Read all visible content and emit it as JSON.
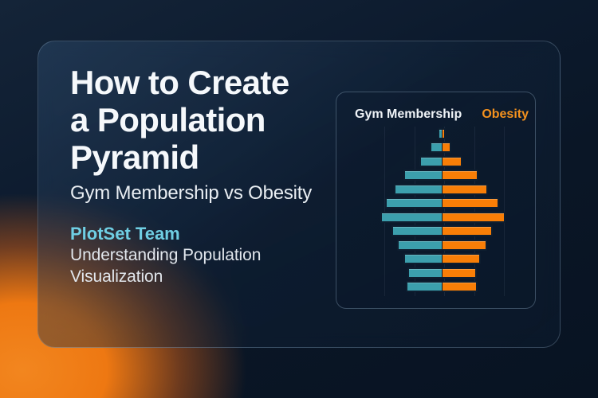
{
  "hero": {
    "title_lines": [
      "How to Create",
      "a Population",
      "Pyramid"
    ],
    "subtitle": "Gym Membership vs Obesity",
    "author": "PlotSet Team",
    "description": "Understanding Population Visualization"
  },
  "chart_panel": {
    "legend_left": "Gym Membership",
    "legend_right": "Obesity"
  },
  "colors": {
    "page_background": "#0A1626",
    "teal_bars": "#3C9FAD",
    "orange_bars": "#F87E07",
    "legend_orange_text": "#F5921E",
    "author_cyan_text": "#6FCEE3",
    "glow_orange": "#EE7812",
    "bar_outline": "#0E1E30"
  },
  "chart_data": {
    "type": "bar",
    "subtype": "population_pyramid",
    "orientation": "horizontal",
    "title": "",
    "legend": [
      "Gym Membership",
      "Obesity"
    ],
    "legend_position": "top",
    "axis_tick_labels_visible": false,
    "grid": "faint vertical gridlines",
    "value_units": "relative units, widest bar = 100",
    "rows_top_to_bottom": 12,
    "series": [
      {
        "name": "Gym Membership",
        "side": "left",
        "color": "#3C9FAD",
        "values": [
          7,
          19,
          36,
          61,
          76,
          90,
          98,
          81,
          72,
          61,
          55,
          57
        ]
      },
      {
        "name": "Obesity",
        "side": "right",
        "color": "#F87E07",
        "values": [
          6,
          15,
          32,
          57,
          73,
          90,
          100,
          81,
          71,
          61,
          55,
          56
        ]
      }
    ]
  }
}
